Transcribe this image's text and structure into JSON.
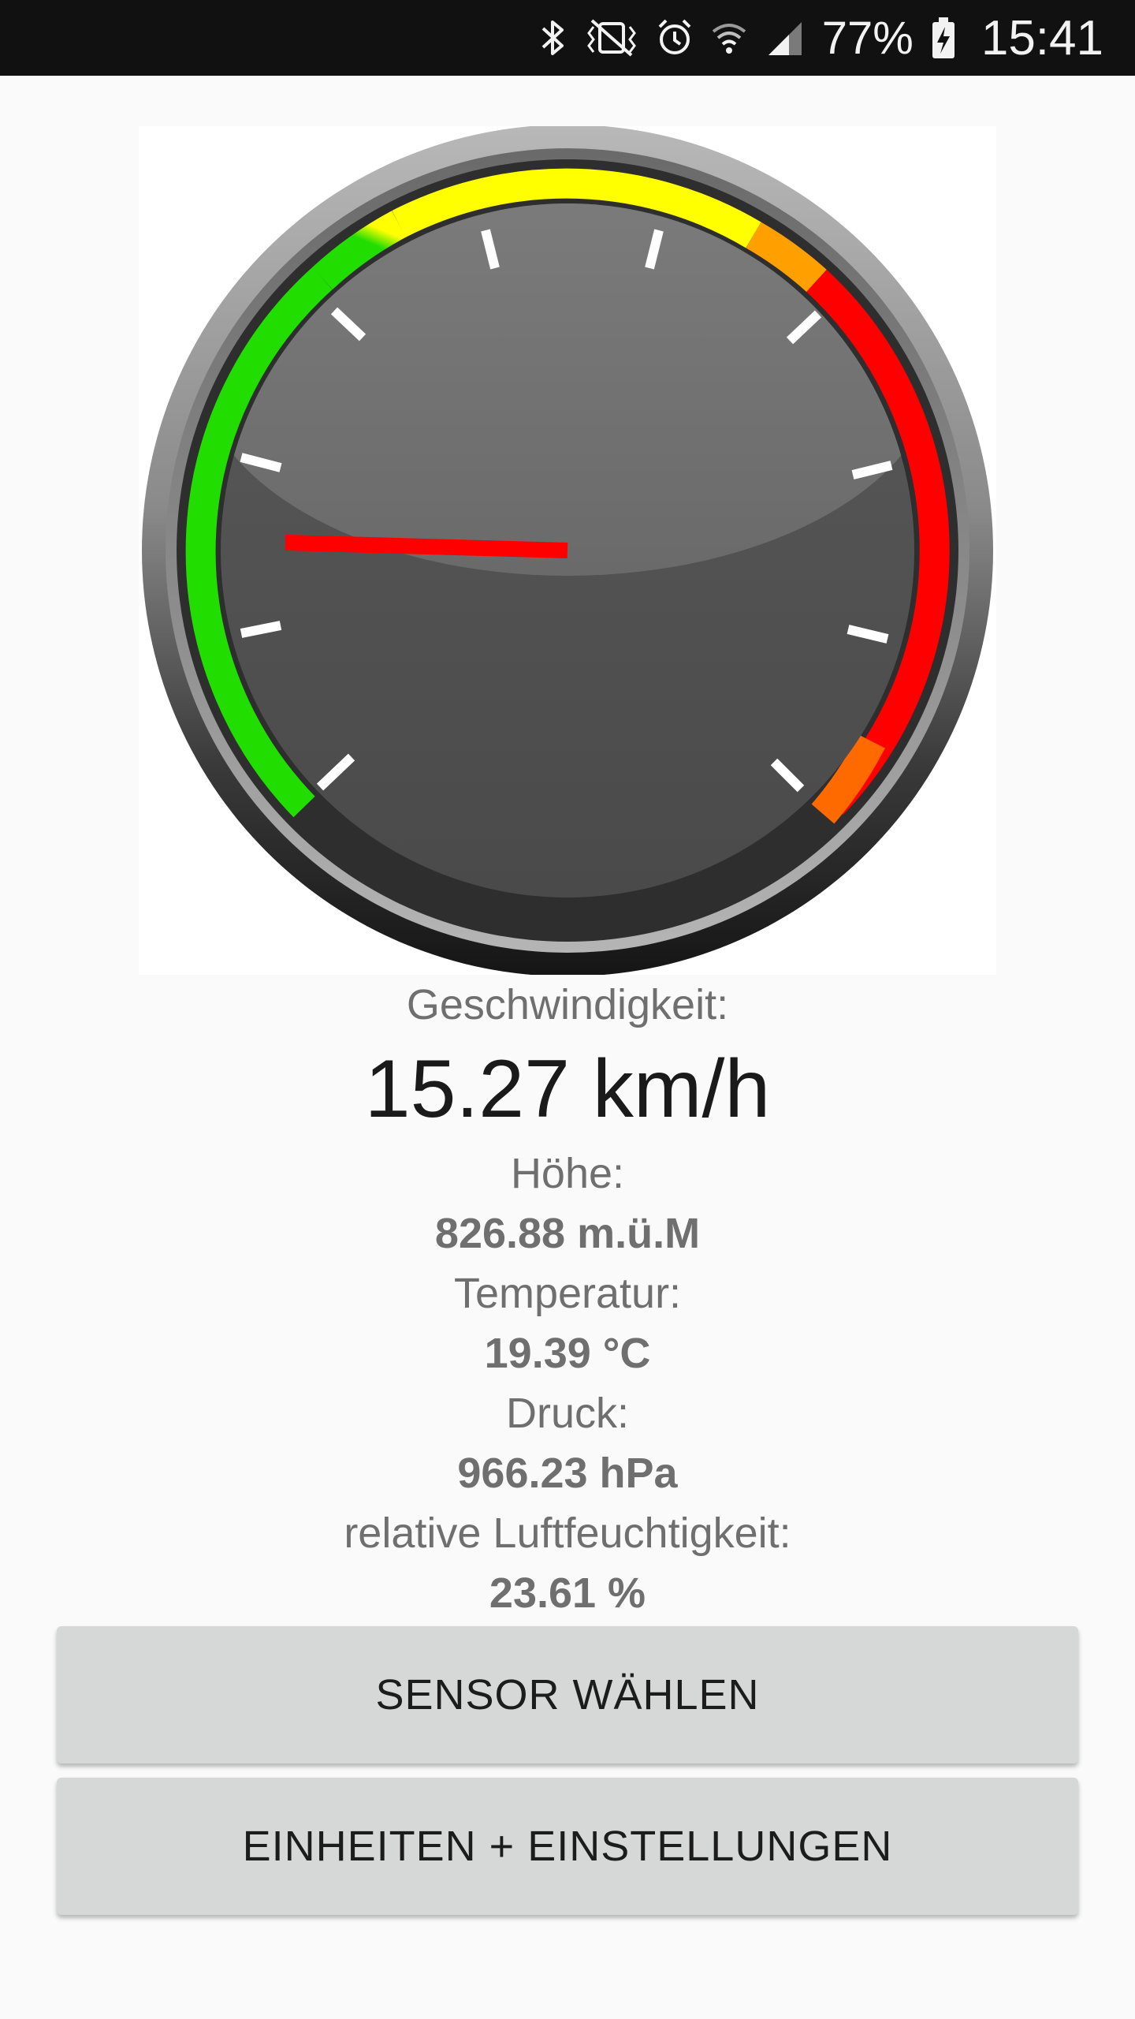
{
  "status_bar": {
    "battery_percent": "77%",
    "time": "15:41",
    "icons": [
      "bluetooth-icon",
      "vibrate-mute-icon",
      "alarm-icon",
      "wifi-icon",
      "cell-signal-icon",
      "battery-charging-icon"
    ]
  },
  "gauge": {
    "colors": {
      "green": "#22dd00",
      "yellow": "#ffff00",
      "red": "#ff0000",
      "needle": "#ff0000",
      "face": "#4d4d4d"
    }
  },
  "readings": {
    "speed_label": "Geschwindigkeit:",
    "speed_value": "15.27 km/h",
    "altitude_label": "Höhe:",
    "altitude_value": "826.88 m.ü.M",
    "temperature_label": "Temperatur:",
    "temperature_value": "19.39 °C",
    "pressure_label": "Druck:",
    "pressure_value": "966.23 hPa",
    "humidity_label": "relative Luftfeuchtigkeit:",
    "humidity_value": "23.61 %"
  },
  "buttons": {
    "sensor": "SENSOR WÄHLEN",
    "settings": "EINHEITEN + EINSTELLUNGEN"
  }
}
